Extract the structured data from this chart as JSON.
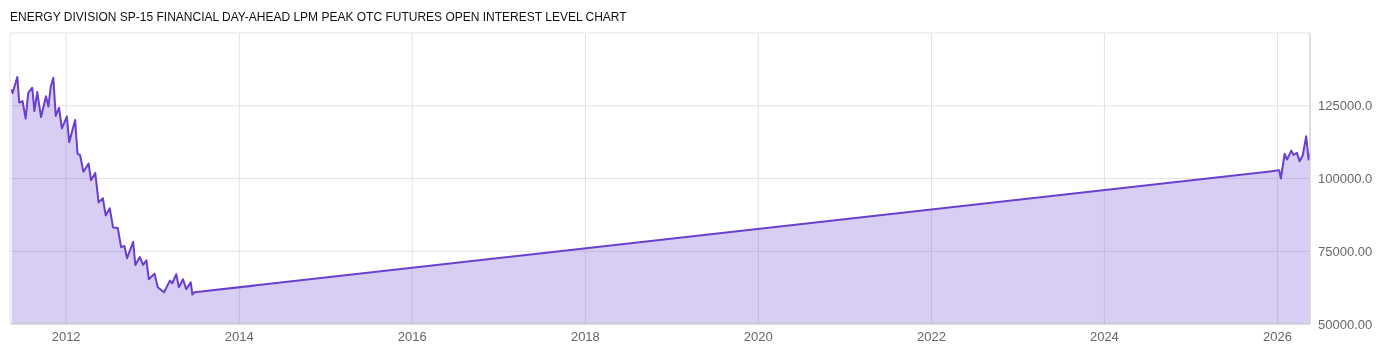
{
  "chart_data": {
    "type": "area",
    "title": "ENERGY DIVISION SP-15 FINANCIAL DAY-AHEAD LPM PEAK OTC FUTURES OPEN INTEREST LEVEL CHART",
    "x": [
      "2011-05-16",
      "2011-05-20",
      "2011-06-09",
      "2011-06-17",
      "2011-07-01",
      "2011-07-14",
      "2011-07-25",
      "2011-08-11",
      "2011-08-20",
      "2011-09-01",
      "2011-09-17",
      "2011-10-08",
      "2011-10-18",
      "2011-10-28",
      "2011-11-08",
      "2011-11-18",
      "2011-12-02",
      "2011-12-14",
      "2012-01-04",
      "2012-01-14",
      "2012-02-08",
      "2012-02-18",
      "2012-02-29",
      "2012-03-14",
      "2012-04-05",
      "2012-04-15",
      "2012-05-03",
      "2012-05-17",
      "2012-06-04",
      "2012-06-16",
      "2012-07-03",
      "2012-07-17",
      "2012-08-06",
      "2012-08-20",
      "2012-09-03",
      "2012-09-14",
      "2012-10-10",
      "2012-10-19",
      "2012-11-07",
      "2012-11-21",
      "2012-12-05",
      "2012-12-15",
      "2013-01-08",
      "2013-01-22",
      "2013-02-17",
      "2013-03-14",
      "2013-03-24",
      "2013-04-10",
      "2013-04-21",
      "2013-05-08",
      "2013-05-22",
      "2013-06-10",
      "2013-06-17",
      "2013-06-26",
      "2026-01-08",
      "2026-01-15",
      "2026-01-31",
      "2026-02-10",
      "2026-02-28",
      "2026-03-09",
      "2026-03-24",
      "2026-04-04",
      "2026-04-17",
      "2026-05-02",
      "2026-05-12",
      "2026-05-16"
    ],
    "series": [
      {
        "color": "#6a3fcf",
        "values": [
          130600,
          129400,
          134900,
          126100,
          126600,
          120600,
          129400,
          131200,
          123200,
          129700,
          121100,
          128300,
          124700,
          131500,
          134600,
          121500,
          124300,
          117200,
          121300,
          112500,
          120100,
          108500,
          108000,
          102300,
          105100,
          99400,
          101900,
          91800,
          93200,
          87300,
          89800,
          83200,
          83000,
          76400,
          76800,
          72600,
          78200,
          70300,
          73000,
          70300,
          71900,
          65400,
          67300,
          62600,
          60900,
          64900,
          64000,
          67100,
          62600,
          65400,
          62000,
          64300,
          60100,
          60900,
          102800,
          100000,
          108500,
          106500,
          109600,
          108100,
          108800,
          105900,
          107900,
          114500,
          106500,
          108500
        ]
      }
    ],
    "xlim": [
      "2011-05-09",
      "2026-05-18"
    ],
    "xticks": [
      "2012",
      "2014",
      "2016",
      "2018",
      "2020",
      "2022",
      "2024",
      "2026"
    ],
    "ylim": [
      50000,
      150000
    ],
    "yticks": [
      {
        "value": 50000,
        "label": "50000.00"
      },
      {
        "value": 75000,
        "label": "75000.00"
      },
      {
        "value": 100000,
        "label": "100000.0"
      },
      {
        "value": 125000,
        "label": "125000.0"
      }
    ],
    "grid": true
  }
}
